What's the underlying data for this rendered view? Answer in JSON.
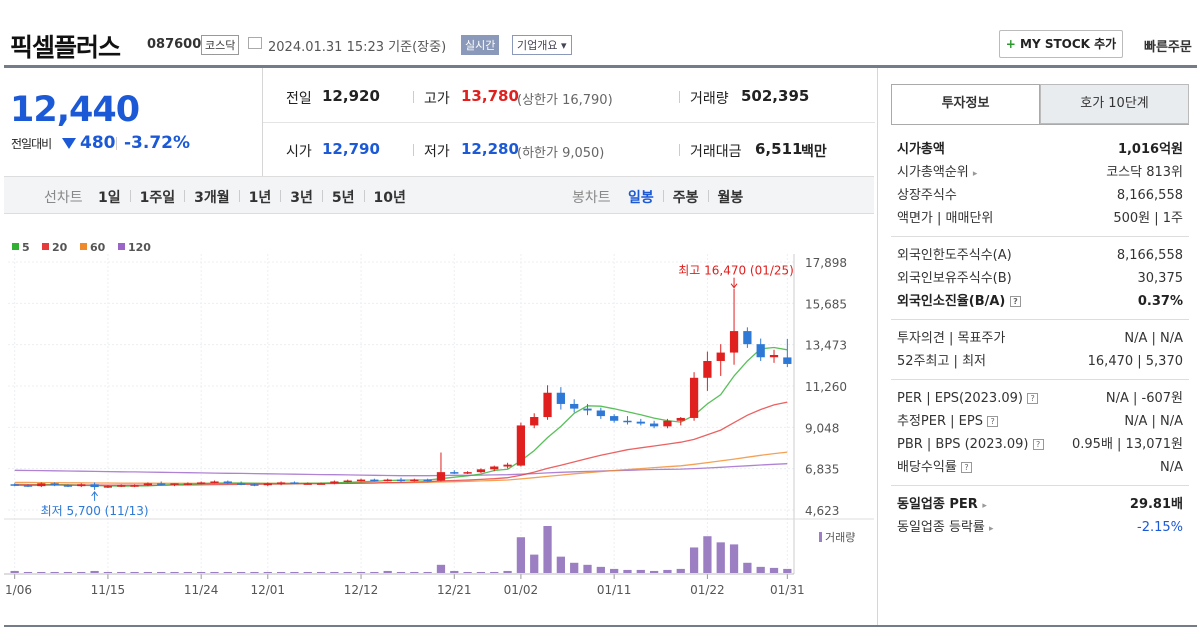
{
  "header": {
    "name": "픽셀플러스",
    "code": "087600",
    "market": "코스닥",
    "asof": "2024.01.31 15:23  기준(장중)",
    "realtime_label": "실시간",
    "overview_label": "기업개요 ▾",
    "mystock_label": "MY STOCK 추가",
    "quick_label": "빠른주문"
  },
  "quote": {
    "price": "12,440",
    "change_label": "전일대비",
    "change": "480",
    "change_pct": "-3.72%",
    "prev_label": "전일",
    "prev": "12,920",
    "high_label": "고가",
    "high": "13,780",
    "upper_limit": "(상한가 16,790)",
    "volume_label": "거래량",
    "volume": "502,395",
    "open_label": "시가",
    "open": "12,790",
    "low_label": "저가",
    "low": "12,280",
    "lower_limit": "(하한가 9,050)",
    "amount_label": "거래대금",
    "amount": "6,511",
    "amount_unit": "백만"
  },
  "tabs": {
    "line_label": "선차트",
    "periods": [
      "1일",
      "1주일",
      "3개월",
      "1년",
      "3년",
      "5년",
      "10년"
    ],
    "candle_label": "봉차트",
    "candles": [
      "일봉",
      "주봉",
      "월봉"
    ],
    "selected": "일봉"
  },
  "sidebar": {
    "tab_invest": "투자정보",
    "tab_hoga": "호가 10단계",
    "rows1": [
      {
        "label": "시가총액",
        "value": "1,016억원",
        "bold": true
      },
      {
        "label": "시가총액순위",
        "value": "코스닥 813위",
        "arrow": true
      },
      {
        "label": "상장주식수",
        "value": "8,166,558"
      },
      {
        "label": "액면가 | 매매단위",
        "value": "500원 | 1주"
      }
    ],
    "rows2": [
      {
        "label": "외국인한도주식수(A)",
        "value": "8,166,558"
      },
      {
        "label": "외국인보유주식수(B)",
        "value": "30,375"
      },
      {
        "label": "외국인소진율(B/A)",
        "value": "0.37%",
        "bold": true,
        "help": true
      }
    ],
    "rows3": [
      {
        "label": "투자의견 | 목표주가",
        "value": "N/A | N/A"
      },
      {
        "label": "52주최고 | 최저",
        "value": "16,470 | 5,370"
      }
    ],
    "rows4": [
      {
        "label": "PER | EPS(2023.09)",
        "value": "N/A | -607원",
        "help": true
      },
      {
        "label": "추정PER | EPS",
        "value": "N/A | N/A",
        "help": true
      },
      {
        "label": "PBR | BPS (2023.09)",
        "value": "0.95배 | 13,071원",
        "help": true
      },
      {
        "label": "배당수익률",
        "value": "N/A",
        "help": true
      }
    ],
    "rows5": [
      {
        "label": "동일업종 PER",
        "value": "29.81배",
        "bold": true,
        "arrow": true
      },
      {
        "label": "동일업종 등락률",
        "value": "-2.15%",
        "arrow": true,
        "valueColor": "#1b59d6"
      }
    ]
  },
  "chart_data": {
    "type": "candlestick",
    "legend": [
      {
        "name": "5",
        "color": "#31b031"
      },
      {
        "name": "20",
        "color": "#e63b3b"
      },
      {
        "name": "60",
        "color": "#f0892a"
      },
      {
        "name": "120",
        "color": "#9b64c9"
      }
    ],
    "yticks": [
      "17,898",
      "15,685",
      "13,473",
      "11,260",
      "9,048",
      "6,835",
      "4,623"
    ],
    "ylim": [
      4623,
      17898
    ],
    "xticks": [
      "11/06",
      "11/15",
      "11/24",
      "12/01",
      "12/12",
      "12/21",
      "01/02",
      "01/11",
      "01/22",
      "01/31"
    ],
    "xtick_index": [
      0,
      7,
      14,
      19,
      26,
      33,
      38,
      45,
      52,
      58
    ],
    "high_label": "최고 16,470 (01/25)",
    "low_label": "최저 5,700 (11/13)",
    "volume_label": "거래량",
    "candles": [
      [
        6000,
        6050,
        5900,
        5950
      ],
      [
        5950,
        6000,
        5850,
        5900
      ],
      [
        5900,
        6100,
        5850,
        6050
      ],
      [
        6050,
        6100,
        5900,
        5950
      ],
      [
        5950,
        6000,
        5850,
        5900
      ],
      [
        5900,
        6050,
        5850,
        6000
      ],
      [
        6000,
        6100,
        5700,
        5850
      ],
      [
        5850,
        5950,
        5800,
        5900
      ],
      [
        5900,
        6000,
        5850,
        5950
      ],
      [
        5950,
        6000,
        5850,
        5950
      ],
      [
        5950,
        6100,
        5900,
        6050
      ],
      [
        6050,
        6150,
        5950,
        6000
      ],
      [
        6000,
        6050,
        5900,
        6050
      ],
      [
        6050,
        6100,
        5950,
        6050
      ],
      [
        6050,
        6150,
        6000,
        6100
      ],
      [
        6100,
        6200,
        6050,
        6150
      ],
      [
        6150,
        6200,
        6000,
        6050
      ],
      [
        6050,
        6150,
        5950,
        6000
      ],
      [
        6000,
        6050,
        5900,
        5950
      ],
      [
        5950,
        6100,
        5900,
        6050
      ],
      [
        6050,
        6150,
        5950,
        6100
      ],
      [
        6100,
        6150,
        6000,
        6050
      ],
      [
        6050,
        6100,
        6000,
        6050
      ],
      [
        6050,
        6100,
        6000,
        6050
      ],
      [
        6050,
        6200,
        6000,
        6150
      ],
      [
        6150,
        6250,
        6100,
        6200
      ],
      [
        6200,
        6300,
        6150,
        6250
      ],
      [
        6250,
        6300,
        6150,
        6200
      ],
      [
        6200,
        6300,
        6150,
        6250
      ],
      [
        6250,
        6350,
        6100,
        6200
      ],
      [
        6200,
        6300,
        6150,
        6250
      ],
      [
        6250,
        6300,
        6150,
        6200
      ],
      [
        6200,
        7700,
        6150,
        6650
      ],
      [
        6650,
        6750,
        6550,
        6600
      ],
      [
        6600,
        6700,
        6550,
        6650
      ],
      [
        6650,
        6850,
        6600,
        6800
      ],
      [
        6800,
        7000,
        6700,
        6950
      ],
      [
        6950,
        7150,
        6850,
        7050
      ],
      [
        7000,
        9300,
        6950,
        9150
      ],
      [
        9150,
        9800,
        9000,
        9600
      ],
      [
        9600,
        11300,
        9450,
        10900
      ],
      [
        10900,
        11200,
        10000,
        10300
      ],
      [
        10300,
        10550,
        9850,
        10050
      ],
      [
        10050,
        10300,
        9700,
        9950
      ],
      [
        9950,
        10100,
        9500,
        9650
      ],
      [
        9650,
        9750,
        9300,
        9400
      ],
      [
        9400,
        9650,
        9200,
        9350
      ],
      [
        9350,
        9500,
        9150,
        9250
      ],
      [
        9250,
        9400,
        9000,
        9100
      ],
      [
        9100,
        9500,
        9000,
        9400
      ],
      [
        9400,
        9600,
        9150,
        9550
      ],
      [
        9550,
        12000,
        9400,
        11700
      ],
      [
        11700,
        13100,
        11000,
        12600
      ],
      [
        12600,
        13500,
        11800,
        13050
      ],
      [
        13050,
        16470,
        12400,
        14200
      ],
      [
        14200,
        14400,
        13300,
        13500
      ],
      [
        13500,
        13800,
        12600,
        12800
      ],
      [
        12800,
        13200,
        12500,
        12920
      ],
      [
        12790,
        13780,
        12280,
        12440
      ]
    ],
    "volume": [
      2,
      1,
      1,
      1,
      1,
      1,
      2,
      1,
      1,
      1,
      1,
      1,
      1,
      1,
      1,
      1,
      1,
      1,
      1,
      1,
      1,
      1,
      1,
      1,
      1,
      1,
      1,
      1,
      2,
      1,
      1,
      1,
      8,
      2,
      1,
      1,
      1,
      2,
      35,
      18,
      46,
      16,
      10,
      8,
      6,
      4,
      3,
      3,
      2,
      3,
      4,
      25,
      36,
      30,
      28,
      10,
      6,
      5,
      4
    ],
    "ma5": [
      5950,
      5930,
      5950,
      5960,
      5950,
      5940,
      5930,
      5920,
      5900,
      5910,
      5920,
      5950,
      5980,
      6000,
      6030,
      6060,
      6070,
      6070,
      6050,
      6040,
      6040,
      6040,
      6050,
      6060,
      6080,
      6100,
      6130,
      6160,
      6200,
      6220,
      6230,
      6230,
      6300,
      6380,
      6450,
      6550,
      6740,
      6800,
      7260,
      7800,
      8500,
      9100,
      9800,
      10200,
      10180,
      10040,
      9880,
      9720,
      9540,
      9410,
      9330,
      9690,
      10300,
      10800,
      11800,
      12600,
      13250,
      13320,
      13200
    ],
    "ma20": [
      6000,
      5990,
      5980,
      5980,
      5970,
      5960,
      5960,
      5950,
      5950,
      5950,
      5950,
      5950,
      5960,
      5960,
      5970,
      5980,
      5990,
      6000,
      6000,
      6010,
      6010,
      6020,
      6030,
      6030,
      6040,
      6050,
      6060,
      6070,
      6090,
      6100,
      6120,
      6140,
      6180,
      6200,
      6230,
      6260,
      6300,
      6350,
      6480,
      6650,
      6850,
      7020,
      7200,
      7380,
      7550,
      7700,
      7850,
      7950,
      8050,
      8150,
      8250,
      8400,
      8650,
      8900,
      9300,
      9700,
      10000,
      10250,
      10400
    ],
    "ma60": [
      6100,
      6100,
      6090,
      6090,
      6080,
      6080,
      6070,
      6070,
      6060,
      6060,
      6060,
      6050,
      6050,
      6050,
      6050,
      6050,
      6050,
      6050,
      6050,
      6050,
      6050,
      6050,
      6050,
      6060,
      6060,
      6060,
      6070,
      6070,
      6080,
      6080,
      6090,
      6100,
      6120,
      6140,
      6160,
      6180,
      6200,
      6230,
      6290,
      6350,
      6420,
      6490,
      6560,
      6620,
      6680,
      6740,
      6790,
      6840,
      6890,
      6940,
      6990,
      7070,
      7160,
      7250,
      7350,
      7450,
      7550,
      7640,
      7720
    ],
    "ma120": [
      6750,
      6740,
      6730,
      6720,
      6710,
      6700,
      6690,
      6680,
      6670,
      6660,
      6650,
      6640,
      6630,
      6620,
      6610,
      6600,
      6590,
      6580,
      6570,
      6560,
      6550,
      6540,
      6530,
      6520,
      6510,
      6500,
      6490,
      6480,
      6470,
      6460,
      6460,
      6460,
      6470,
      6480,
      6480,
      6490,
      6500,
      6510,
      6540,
      6570,
      6610,
      6640,
      6670,
      6690,
      6710,
      6730,
      6750,
      6770,
      6790,
      6800,
      6810,
      6840,
      6870,
      6910,
      6950,
      6990,
      7030,
      7070,
      7100
    ]
  }
}
